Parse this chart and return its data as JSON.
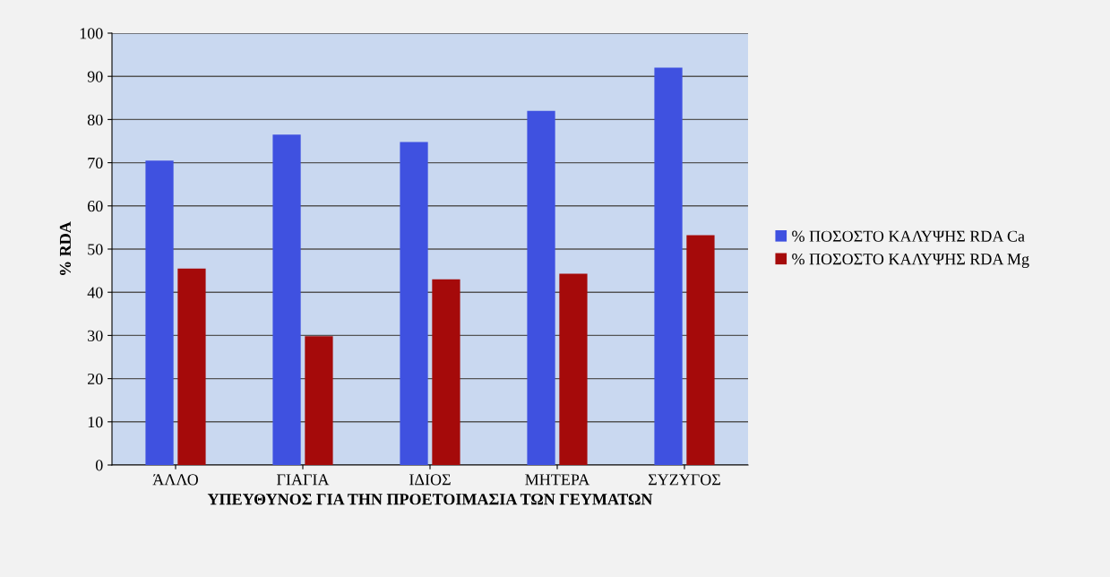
{
  "chart_data": {
    "type": "bar",
    "xlabel": "ΥΠΕΥΘΥΝΟΣ ΓΙΑ ΤΗΝ ΠΡΟΕΤΟΙΜΑΣΙΑ ΤΩΝ ΓΕΥΜΑΤΩΝ",
    "ylabel": "% RDA",
    "categories": [
      "ΆΛΛΟ",
      "ΓΙΑΓΙΑ",
      "ΙΔΙΟΣ",
      "ΜΗΤΕΡΑ",
      "ΣΥΖΥΓΟΣ"
    ],
    "series": [
      {
        "name": "% ΠΟΣΟΣΤΟ ΚΑΛΥΨΗΣ RDA Ca",
        "color": "#3f51e0",
        "values": [
          70.5,
          76.5,
          74.8,
          82,
          92
        ]
      },
      {
        "name": "% ΠΟΣΟΣΤΟ ΚΑΛΥΨΗΣ RDA Mg",
        "color": "#a50a0a",
        "values": [
          45.5,
          29.8,
          43,
          44.3,
          53.2
        ]
      }
    ],
    "ylim": [
      0,
      100
    ],
    "yticks": [
      0,
      10,
      20,
      30,
      40,
      50,
      60,
      70,
      80,
      90,
      100
    ],
    "grid": "y",
    "legend": "right"
  }
}
